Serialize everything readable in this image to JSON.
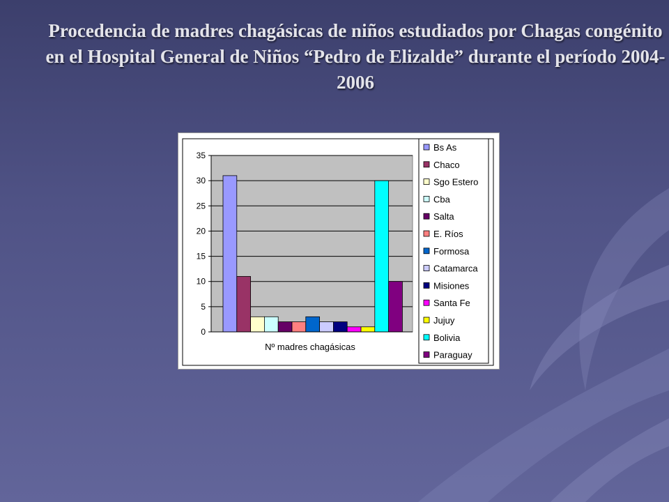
{
  "slide": {
    "title": "Procedencia de madres chagásicas de niños estudiados por Chagas congénito en el Hospital General de Niños “Pedro de Elizalde” durante el período 2004-2006"
  },
  "colors": {
    "plot_background": "#c0c0c0",
    "axis": "#000000"
  },
  "chart_data": {
    "type": "bar",
    "title": "",
    "xlabel": "",
    "ylabel": "",
    "categories": [
      "Nº madres chagásicas"
    ],
    "ylim": [
      0,
      35
    ],
    "yticks": [
      0,
      5,
      10,
      15,
      20,
      25,
      30,
      35
    ],
    "grid": true,
    "legend_position": "right",
    "series": [
      {
        "name": "Bs As",
        "values": [
          31
        ],
        "color": "#9999ff"
      },
      {
        "name": "Chaco",
        "values": [
          11
        ],
        "color": "#993366"
      },
      {
        "name": "Sgo Estero",
        "values": [
          3
        ],
        "color": "#ffffcc"
      },
      {
        "name": "Cba",
        "values": [
          3
        ],
        "color": "#ccffff"
      },
      {
        "name": "Salta",
        "values": [
          2
        ],
        "color": "#660066"
      },
      {
        "name": "E. Ríos",
        "values": [
          2
        ],
        "color": "#ff8080"
      },
      {
        "name": "Formosa",
        "values": [
          3
        ],
        "color": "#0066cc"
      },
      {
        "name": "Catamarca",
        "values": [
          2
        ],
        "color": "#ccccff"
      },
      {
        "name": "Misiones",
        "values": [
          2
        ],
        "color": "#000080"
      },
      {
        "name": "Santa Fe",
        "values": [
          1
        ],
        "color": "#ff00ff"
      },
      {
        "name": "Jujuy",
        "values": [
          1
        ],
        "color": "#ffff00"
      },
      {
        "name": "Bolivia",
        "values": [
          30
        ],
        "color": "#00ffff"
      },
      {
        "name": "Paraguay",
        "values": [
          10
        ],
        "color": "#800080"
      }
    ]
  }
}
